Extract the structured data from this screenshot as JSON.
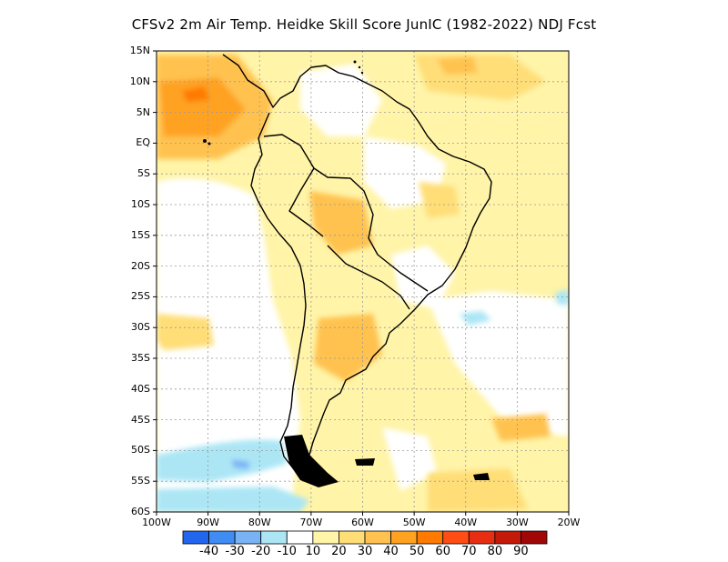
{
  "title": "CFSv2  2m Air Temp. Heidke Skill Score JunIC (1982-2022) NDJ Fcst",
  "map": {
    "lon_range": [
      -100,
      -20
    ],
    "lat_range": [
      -60,
      15
    ],
    "lat_labels": [
      "15N",
      "10N",
      "5N",
      "EQ",
      "5S",
      "10S",
      "15S",
      "20S",
      "25S",
      "30S",
      "35S",
      "40S",
      "45S",
      "50S",
      "55S",
      "60S"
    ],
    "lon_labels": [
      "100W",
      "90W",
      "80W",
      "70W",
      "60W",
      "50W",
      "40W",
      "30W",
      "20W"
    ],
    "grid": true
  },
  "colorbar": {
    "colors": [
      "#2266ee",
      "#3f8cf2",
      "#7ab3f5",
      "#ace6f5",
      "#ffffff",
      "#fff4a8",
      "#ffde78",
      "#ffc250",
      "#ffa221",
      "#ff7a00",
      "#ff4d14",
      "#e82e12",
      "#c41a0a",
      "#a00808"
    ],
    "labels": [
      "-40",
      "-30",
      "-20",
      "-10",
      "10",
      "20",
      "30",
      "40",
      "50",
      "60",
      "70",
      "80",
      "90"
    ]
  }
}
